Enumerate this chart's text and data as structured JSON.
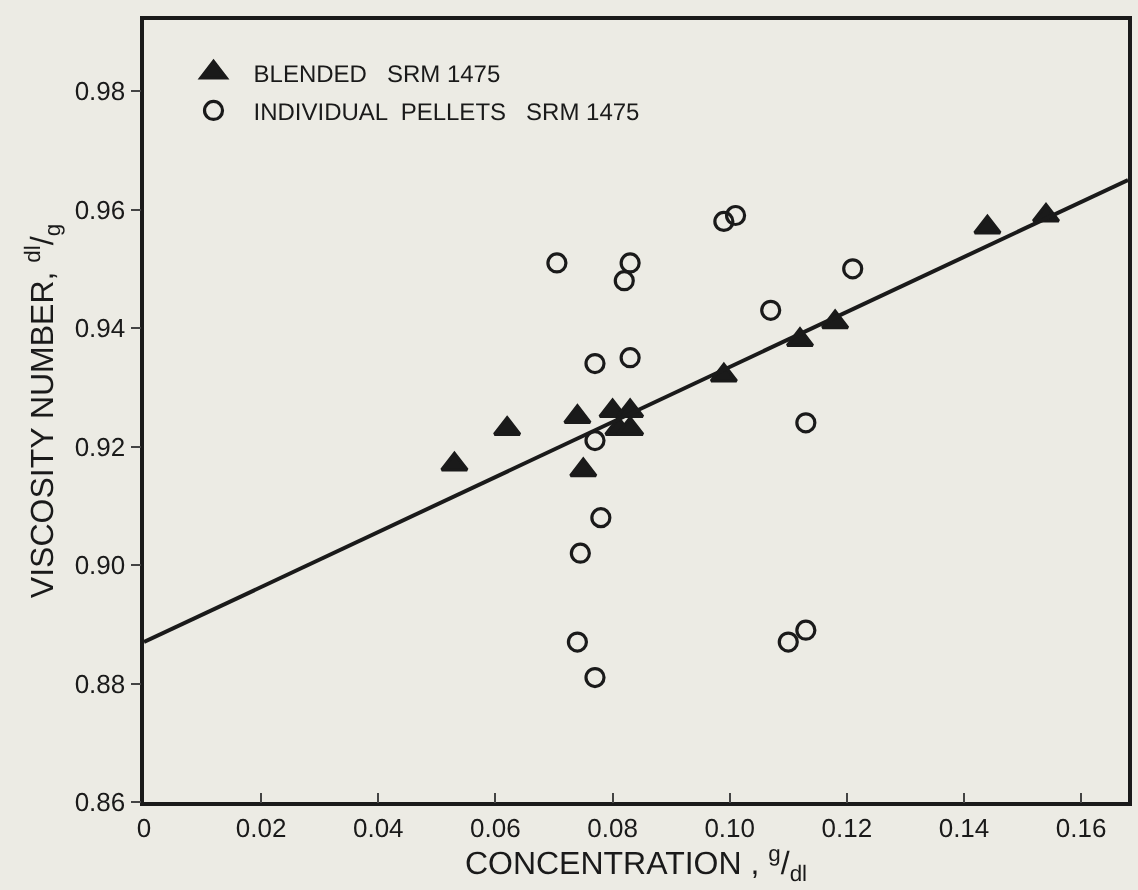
{
  "chart_data": {
    "type": "scatter",
    "xlabel": "CONCENTRATION , $^{g}$/$_{dl}$",
    "ylabel": "VISCOSITY NUMBER, $^{dl}$/$_{g}$",
    "xlim": [
      0,
      0.168
    ],
    "ylim": [
      0.86,
      0.992
    ],
    "xticks": [
      0,
      0.02,
      0.04,
      0.06,
      0.08,
      {
        "value": 0.1,
        "label": "0.10"
      },
      0.12,
      0.14,
      0.16
    ],
    "yticks": [
      0.86,
      0.88,
      {
        "value": 0.9,
        "label": "0.90"
      },
      0.92,
      0.94,
      0.96,
      0.98
    ],
    "grid": false,
    "legend": "top left",
    "series": [
      {
        "name": "BLENDED   SRM 1475",
        "color": "#1a1a1a",
        "marker": "triangle",
        "x": [
          0.053,
          0.062,
          0.074,
          0.075,
          0.08,
          0.083,
          0.081,
          0.083,
          0.099,
          0.112,
          0.118,
          0.144,
          0.154
        ],
        "values": [
          0.917,
          0.923,
          0.925,
          0.916,
          0.926,
          0.926,
          0.923,
          0.923,
          0.932,
          0.938,
          0.941,
          0.957,
          0.959
        ]
      },
      {
        "name": "INDIVIDUAL  PELLETS   SRM 1475",
        "color": "#1a1a1a",
        "marker": "circle",
        "x": [
          0.0705,
          0.083,
          0.082,
          0.099,
          0.101,
          0.107,
          0.077,
          0.083,
          0.077,
          0.078,
          0.0745,
          0.074,
          0.077,
          0.113,
          0.121,
          0.11,
          0.113
        ],
        "values": [
          0.951,
          0.951,
          0.948,
          0.958,
          0.959,
          0.943,
          0.934,
          0.935,
          0.921,
          0.908,
          0.902,
          0.887,
          0.881,
          0.924,
          0.95,
          0.887,
          0.889
        ]
      },
      {
        "type": "line",
        "color": "#1a1a1a",
        "marker": "none",
        "x": [
          0,
          0.168
        ],
        "values": [
          0.887,
          0.965
        ]
      }
    ]
  }
}
